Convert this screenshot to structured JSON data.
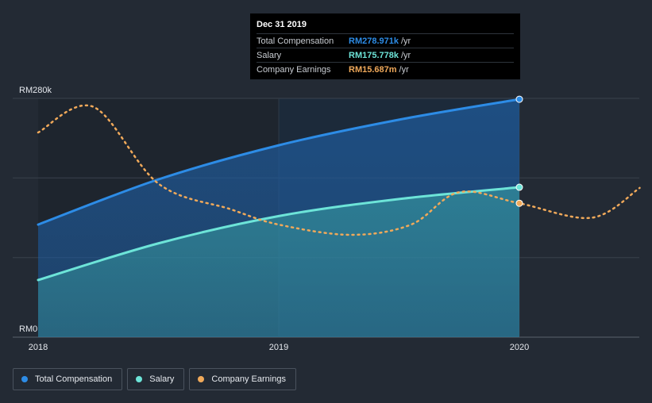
{
  "chart_data": {
    "type": "area",
    "title": "",
    "xlabel": "",
    "ylabel": "",
    "x_ticks": [
      "2018",
      "2019",
      "2020"
    ],
    "y_ticks": [
      "RM280k",
      "RM0"
    ],
    "ylim": [
      0,
      280
    ],
    "xlim": [
      2018.0,
      2020.5
    ],
    "series": [
      {
        "name": "Total Compensation",
        "color": "#2d8ce6",
        "x": [
          2018.0,
          2018.5,
          2019.0,
          2019.5,
          2020.0
        ],
        "values": [
          132,
          185,
          225,
          255,
          278.971
        ]
      },
      {
        "name": "Salary",
        "color": "#6de4d8",
        "x": [
          2018.0,
          2018.5,
          2019.0,
          2019.5,
          2020.0
        ],
        "values": [
          67,
          110,
          142,
          162,
          175.778
        ]
      },
      {
        "name": "Company Earnings",
        "color": "#f0a95a",
        "dashed": true,
        "x": [
          2018.0,
          2018.23,
          2018.5,
          2018.8,
          2019.0,
          2019.3,
          2019.55,
          2019.75,
          2020.0,
          2020.3,
          2020.5
        ],
        "values": [
          240,
          270,
          180,
          150,
          132,
          120,
          132,
          170,
          157,
          140,
          175
        ]
      }
    ],
    "highlight_x": 2020.0
  },
  "tooltip": {
    "date": "Dec 31 2019",
    "rows": [
      {
        "label": "Total Compensation",
        "value": "RM278.971k",
        "unit": "/yr",
        "color": "#2d8ce6"
      },
      {
        "label": "Salary",
        "value": "RM175.778k",
        "unit": "/yr",
        "color": "#6de4d8"
      },
      {
        "label": "Company Earnings",
        "value": "RM15.687m",
        "unit": "/yr",
        "color": "#f0a95a"
      }
    ]
  },
  "legend": [
    {
      "label": "Total Compensation",
      "color": "#2d8ce6"
    },
    {
      "label": "Salary",
      "color": "#6de4d8"
    },
    {
      "label": "Company Earnings",
      "color": "#f0a95a"
    }
  ]
}
